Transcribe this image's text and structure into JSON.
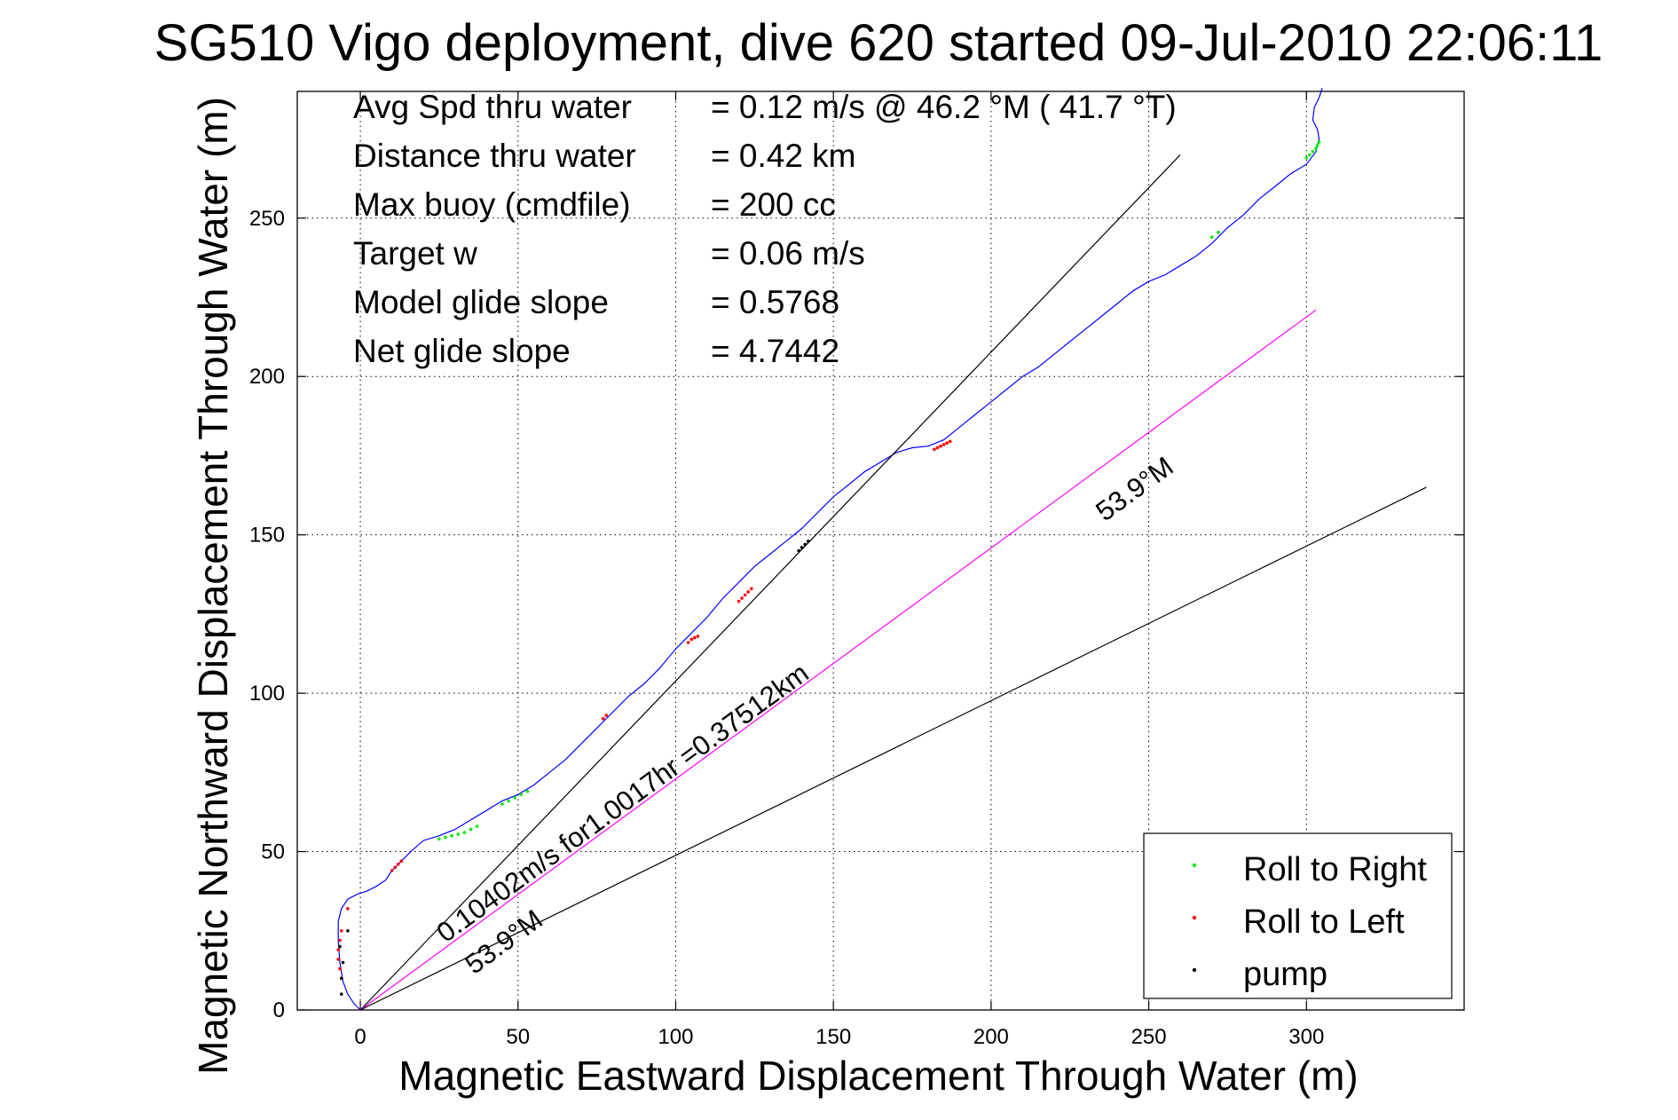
{
  "chart_data": {
    "type": "line",
    "title": "SG510 Vigo deployment, dive 620 started 09-Jul-2010 22:06:11",
    "xlabel": "Magnetic Eastward Displacement Through Water (m)",
    "ylabel": "Magnetic Northward Displacement Through Water (m)",
    "xlim": [
      -20,
      350
    ],
    "ylim": [
      0,
      290
    ],
    "xticks": [
      0,
      50,
      100,
      150,
      200,
      250,
      300
    ],
    "yticks": [
      0,
      50,
      100,
      150,
      200,
      250
    ],
    "grid": true,
    "legend_position": "bottom-right",
    "info_rows": [
      {
        "label": "Avg Spd thru water",
        "value": "=  0.12 m/s @  46.2 °M ( 41.7 °T)"
      },
      {
        "label": "Distance thru water",
        "value": "=  0.42 km"
      },
      {
        "label": "Max buoy (cmdfile)",
        "value": "= 200 cc"
      },
      {
        "label": "Target w",
        "value": "= 0.06 m/s"
      },
      {
        "label": "Model glide slope",
        "value": "= 0.5768"
      },
      {
        "label": "Net glide slope",
        "value": "= 4.7442"
      }
    ],
    "annotations": [
      {
        "text": "0.10402m/s for1.0017hr =0.37512km",
        "x": 27,
        "y": 21,
        "angle": 36.1
      },
      {
        "text": "53.9°M",
        "x": 36,
        "y": 11,
        "angle": 36.1
      },
      {
        "text": "53.9°M",
        "x": 236,
        "y": 154,
        "angle": 36.1
      }
    ],
    "series": [
      {
        "name": "track",
        "color": "#0000ff",
        "x": [
          0,
          -2,
          -4,
          -5.5,
          -6.5,
          -7,
          -7,
          -6,
          -4,
          -1,
          2,
          5,
          8,
          10,
          13,
          16,
          20,
          25,
          30,
          35,
          40,
          45,
          50,
          55,
          60,
          65,
          70,
          75,
          80,
          85,
          90,
          95,
          100,
          105,
          110,
          115,
          120,
          125,
          130,
          135,
          140,
          145,
          150,
          155,
          160,
          165,
          170,
          175,
          180,
          185,
          190,
          195,
          200,
          205,
          210,
          215,
          220,
          225,
          230,
          235,
          240,
          245,
          250,
          255,
          260,
          265,
          270,
          275,
          280,
          285,
          290,
          295,
          300,
          303,
          304,
          303.5,
          302,
          302.5,
          304,
          305
        ],
        "y": [
          0,
          2,
          5,
          9,
          15,
          22,
          28,
          32,
          35,
          36.5,
          37.5,
          39,
          41,
          44,
          47,
          50,
          53.5,
          55,
          57,
          60,
          63,
          66,
          68,
          71,
          75,
          79,
          84,
          89,
          94,
          99,
          103,
          108,
          114,
          119,
          124,
          130,
          135,
          140,
          144,
          148,
          152,
          157,
          162,
          166,
          170,
          173,
          176,
          177.5,
          178,
          180,
          184,
          188,
          192,
          196,
          200,
          203,
          207,
          211,
          215,
          219,
          223,
          227,
          230,
          232,
          235,
          238,
          242,
          247,
          251,
          256,
          260,
          264,
          267,
          271,
          275,
          278,
          281,
          285,
          288,
          291
        ]
      },
      {
        "name": "segment-1",
        "color": "#000000",
        "x": [
          0,
          260
        ],
        "y": [
          0,
          270
        ]
      },
      {
        "name": "segment-2",
        "color": "#ff00ff",
        "x": [
          0,
          303
        ],
        "y": [
          0,
          221
        ]
      },
      {
        "name": "segment-3",
        "color": "#000000",
        "x": [
          0,
          338
        ],
        "y": [
          0,
          165
        ]
      },
      {
        "name": "Roll to Right",
        "color": "#00ee00",
        "x": [
          25,
          27,
          29,
          31,
          33,
          35,
          37,
          45,
          47,
          49,
          51,
          53,
          270,
          272,
          300,
          301,
          302,
          303,
          303.5,
          304
        ],
        "y": [
          54,
          54.5,
          55,
          55.5,
          56,
          57,
          58,
          65,
          66,
          67,
          68,
          69,
          244,
          245.5,
          269,
          270,
          271,
          272,
          273,
          274
        ]
      },
      {
        "name": "Roll to Left",
        "color": "#ff0000",
        "x": [
          -6,
          -6.5,
          -7,
          -7,
          -6.5,
          -6,
          -4,
          10,
          11,
          12,
          13,
          77,
          78,
          104,
          105,
          106,
          107,
          120,
          121,
          122,
          123,
          124,
          182,
          183,
          184,
          185,
          186,
          187
        ],
        "y": [
          10,
          13,
          16,
          19,
          22,
          25,
          32,
          44,
          45,
          46,
          47,
          92,
          93,
          116,
          117,
          117.5,
          118,
          129,
          130,
          131,
          132,
          133,
          177,
          177.5,
          178,
          178.5,
          179,
          179.5
        ],
        "size": 2
      },
      {
        "name": "pump",
        "color": "#000000",
        "x": [
          -6,
          -6,
          -5.5,
          -6.5,
          -4,
          139,
          140,
          141,
          142
        ],
        "y": [
          5,
          10,
          15,
          20,
          25,
          145,
          146,
          147,
          148
        ]
      }
    ]
  }
}
